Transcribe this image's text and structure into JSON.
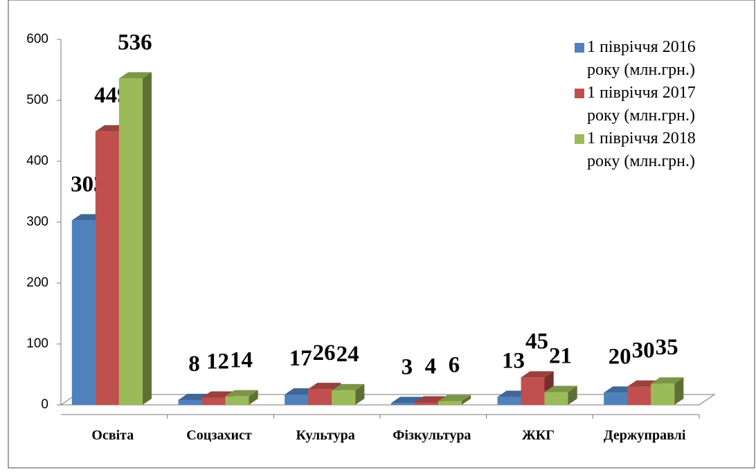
{
  "chart_data": {
    "type": "bar3d",
    "categories": [
      "Освіта",
      "Соцзахист",
      "Культура",
      "Фізкультура",
      "ЖКГ",
      "Держуправлі"
    ],
    "series": [
      {
        "name": "1 півріччя 2016 року (млн.грн.)",
        "color": "#4f81bd",
        "values": [
          303,
          8,
          17,
          3,
          13,
          20
        ]
      },
      {
        "name": "1 півріччя 2017 року (млн.грн.)",
        "color": "#c0504d",
        "values": [
          449,
          12,
          26,
          4,
          45,
          30
        ]
      },
      {
        "name": "1 півріччя 2018 року (млн.грн.)",
        "color": "#9bbb59",
        "values": [
          536,
          14,
          24,
          6,
          21,
          35
        ]
      }
    ],
    "ylim": [
      0,
      600
    ],
    "yticks": [
      0,
      100,
      200,
      300,
      400,
      500,
      600
    ],
    "legend": "upper right"
  }
}
